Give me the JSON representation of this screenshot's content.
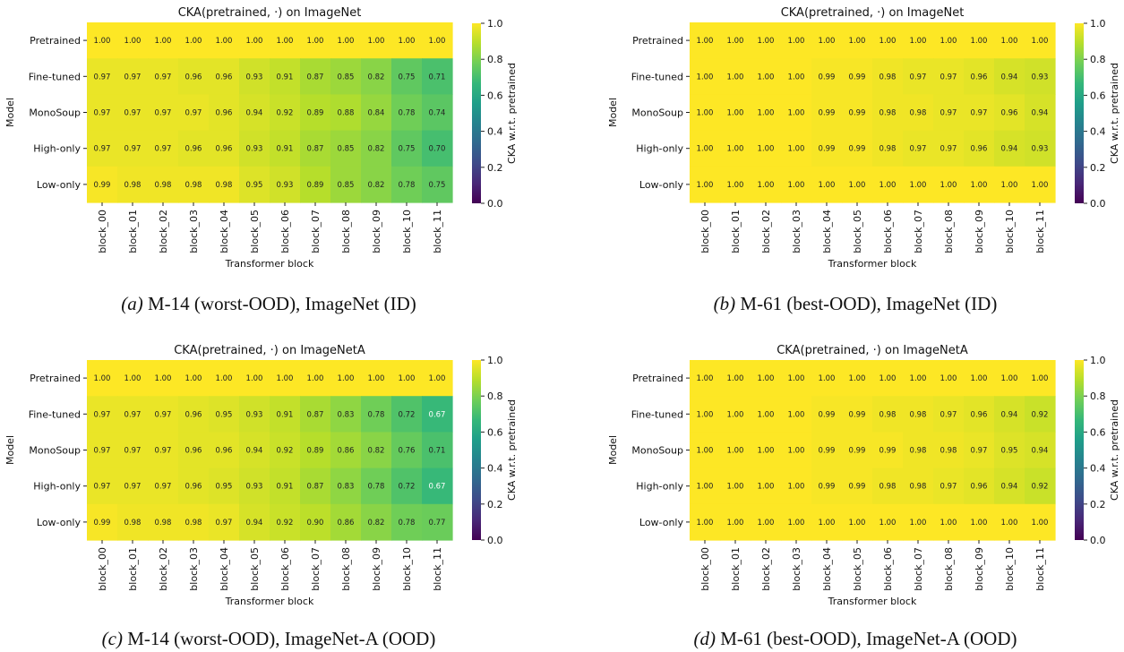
{
  "colorbar_ticks": [
    "0.0",
    "0.2",
    "0.4",
    "0.6",
    "0.8",
    "1.0"
  ],
  "colormap": [
    "#440154",
    "#482777",
    "#3e4a89",
    "#31688e",
    "#26828e",
    "#1f9e89",
    "#35b779",
    "#6ece58",
    "#b5de2b",
    "#fde725"
  ],
  "chart_data": [
    {
      "type": "heatmap",
      "title": "CKA(pretrained, ·) on ImageNet",
      "xlabel": "Transformer block",
      "ylabel": "Model",
      "colorbar_label": "CKA w.r.t. pretrained",
      "vlim": [
        0,
        1
      ],
      "x": [
        "block_00",
        "block_01",
        "block_02",
        "block_03",
        "block_04",
        "block_05",
        "block_06",
        "block_07",
        "block_08",
        "block_09",
        "block_10",
        "block_11"
      ],
      "y": [
        "Pretrained",
        "Fine-tuned",
        "MonoSoup",
        "High-only",
        "Low-only"
      ],
      "values": [
        [
          1.0,
          1.0,
          1.0,
          1.0,
          1.0,
          1.0,
          1.0,
          1.0,
          1.0,
          1.0,
          1.0,
          1.0
        ],
        [
          0.97,
          0.97,
          0.97,
          0.96,
          0.96,
          0.93,
          0.91,
          0.87,
          0.85,
          0.82,
          0.75,
          0.71
        ],
        [
          0.97,
          0.97,
          0.97,
          0.97,
          0.96,
          0.94,
          0.92,
          0.89,
          0.88,
          0.84,
          0.78,
          0.74
        ],
        [
          0.97,
          0.97,
          0.97,
          0.96,
          0.96,
          0.93,
          0.91,
          0.87,
          0.85,
          0.82,
          0.75,
          0.7
        ],
        [
          0.99,
          0.98,
          0.98,
          0.98,
          0.98,
          0.95,
          0.93,
          0.89,
          0.85,
          0.82,
          0.78,
          0.75
        ]
      ],
      "caption_label": "(a)",
      "caption_text": "M-14 (worst-OOD), ImageNet (ID)"
    },
    {
      "type": "heatmap",
      "title": "CKA(pretrained, ·) on ImageNet",
      "xlabel": "Transformer block",
      "ylabel": "Model",
      "colorbar_label": "CKA w.r.t. pretrained",
      "vlim": [
        0,
        1
      ],
      "x": [
        "block_00",
        "block_01",
        "block_02",
        "block_03",
        "block_04",
        "block_05",
        "block_06",
        "block_07",
        "block_08",
        "block_09",
        "block_10",
        "block_11"
      ],
      "y": [
        "Pretrained",
        "Fine-tuned",
        "MonoSoup",
        "High-only",
        "Low-only"
      ],
      "values": [
        [
          1.0,
          1.0,
          1.0,
          1.0,
          1.0,
          1.0,
          1.0,
          1.0,
          1.0,
          1.0,
          1.0,
          1.0
        ],
        [
          1.0,
          1.0,
          1.0,
          1.0,
          0.99,
          0.99,
          0.98,
          0.97,
          0.97,
          0.96,
          0.94,
          0.93
        ],
        [
          1.0,
          1.0,
          1.0,
          1.0,
          0.99,
          0.99,
          0.98,
          0.98,
          0.97,
          0.97,
          0.96,
          0.94
        ],
        [
          1.0,
          1.0,
          1.0,
          1.0,
          0.99,
          0.99,
          0.98,
          0.97,
          0.97,
          0.96,
          0.94,
          0.93
        ],
        [
          1.0,
          1.0,
          1.0,
          1.0,
          1.0,
          1.0,
          1.0,
          1.0,
          1.0,
          1.0,
          1.0,
          1.0
        ]
      ],
      "caption_label": "(b)",
      "caption_text": "M-61 (best-OOD), ImageNet (ID)"
    },
    {
      "type": "heatmap",
      "title": "CKA(pretrained, ·) on ImageNetA",
      "xlabel": "Transformer block",
      "ylabel": "Model",
      "colorbar_label": "CKA w.r.t. pretrained",
      "vlim": [
        0,
        1
      ],
      "x": [
        "block_00",
        "block_01",
        "block_02",
        "block_03",
        "block_04",
        "block_05",
        "block_06",
        "block_07",
        "block_08",
        "block_09",
        "block_10",
        "block_11"
      ],
      "y": [
        "Pretrained",
        "Fine-tuned",
        "MonoSoup",
        "High-only",
        "Low-only"
      ],
      "values": [
        [
          1.0,
          1.0,
          1.0,
          1.0,
          1.0,
          1.0,
          1.0,
          1.0,
          1.0,
          1.0,
          1.0,
          1.0
        ],
        [
          0.97,
          0.97,
          0.97,
          0.96,
          0.95,
          0.93,
          0.91,
          0.87,
          0.83,
          0.78,
          0.72,
          0.67
        ],
        [
          0.97,
          0.97,
          0.97,
          0.96,
          0.96,
          0.94,
          0.92,
          0.89,
          0.86,
          0.82,
          0.76,
          0.71
        ],
        [
          0.97,
          0.97,
          0.97,
          0.96,
          0.95,
          0.93,
          0.91,
          0.87,
          0.83,
          0.78,
          0.72,
          0.67
        ],
        [
          0.99,
          0.98,
          0.98,
          0.98,
          0.97,
          0.94,
          0.92,
          0.9,
          0.86,
          0.82,
          0.78,
          0.77
        ]
      ],
      "caption_label": "(c)",
      "caption_text": "M-14 (worst-OOD), ImageNet-A (OOD)"
    },
    {
      "type": "heatmap",
      "title": "CKA(pretrained, ·) on ImageNetA",
      "xlabel": "Transformer block",
      "ylabel": "Model",
      "colorbar_label": "CKA w.r.t. pretrained",
      "vlim": [
        0,
        1
      ],
      "x": [
        "block_00",
        "block_01",
        "block_02",
        "block_03",
        "block_04",
        "block_05",
        "block_06",
        "block_07",
        "block_08",
        "block_09",
        "block_10",
        "block_11"
      ],
      "y": [
        "Pretrained",
        "Fine-tuned",
        "MonoSoup",
        "High-only",
        "Low-only"
      ],
      "values": [
        [
          1.0,
          1.0,
          1.0,
          1.0,
          1.0,
          1.0,
          1.0,
          1.0,
          1.0,
          1.0,
          1.0,
          1.0
        ],
        [
          1.0,
          1.0,
          1.0,
          1.0,
          0.99,
          0.99,
          0.98,
          0.98,
          0.97,
          0.96,
          0.94,
          0.92
        ],
        [
          1.0,
          1.0,
          1.0,
          1.0,
          0.99,
          0.99,
          0.99,
          0.98,
          0.98,
          0.97,
          0.95,
          0.94
        ],
        [
          1.0,
          1.0,
          1.0,
          1.0,
          0.99,
          0.99,
          0.98,
          0.98,
          0.97,
          0.96,
          0.94,
          0.92
        ],
        [
          1.0,
          1.0,
          1.0,
          1.0,
          1.0,
          1.0,
          1.0,
          1.0,
          1.0,
          1.0,
          1.0,
          1.0
        ]
      ],
      "caption_label": "(d)",
      "caption_text": "M-61 (best-OOD), ImageNet-A (OOD)"
    }
  ]
}
